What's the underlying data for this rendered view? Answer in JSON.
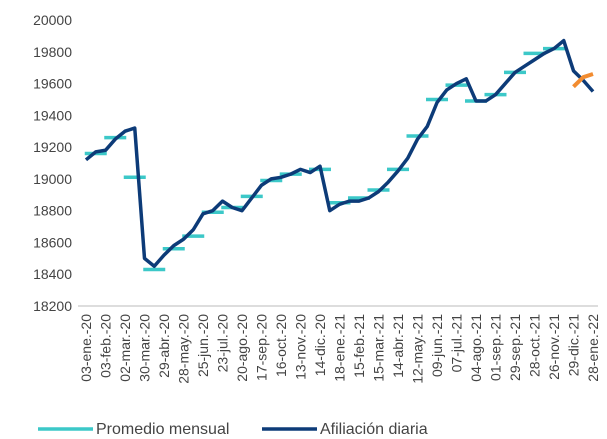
{
  "chart_data": {
    "type": "line",
    "x": [
      "03-ene.-20",
      null,
      "03-feb.-20",
      null,
      "02-mar.-20",
      null,
      "30-mar.-20",
      null,
      "29-abr.-20",
      null,
      "28-may.-20",
      null,
      "25-jun.-20",
      null,
      "23-jul.-20",
      null,
      "20-ago.-20",
      null,
      "17-sep.-20",
      null,
      "16-oct.-20",
      null,
      "13-nov.-20",
      null,
      "14-dic.-20",
      null,
      "18-ene.-21",
      null,
      "15-feb.-21",
      null,
      "15-mar.-21",
      null,
      "14-abr.-21",
      null,
      "12-may.-21",
      null,
      "09-jun.-21",
      null,
      "07-jul.-21",
      null,
      "04-ago.-21",
      null,
      "01-sep.-21",
      null,
      "29-sep.-21",
      null,
      "28-oct.-21",
      null,
      "26-nov.-21",
      null,
      "29-dic.-21",
      null,
      "28-ene.-22"
    ],
    "series": [
      {
        "name": "Promedio mensual",
        "color": "#3cc8c8",
        "values": [
          null,
          19160,
          null,
          19260,
          null,
          19010,
          null,
          18430,
          null,
          18560,
          null,
          18640,
          null,
          18790,
          null,
          18820,
          null,
          18890,
          null,
          18990,
          null,
          19030,
          null,
          null,
          19060,
          null,
          18850,
          null,
          18880,
          null,
          18930,
          null,
          19060,
          null,
          19270,
          null,
          19500,
          null,
          19590,
          null,
          19490,
          null,
          19530,
          null,
          19670,
          null,
          19790,
          null,
          19820,
          null,
          null,
          null,
          null
        ]
      },
      {
        "name": "Afiliación diaria",
        "color": "#0d3b78",
        "values": [
          19120,
          19170,
          19180,
          19250,
          19300,
          19320,
          18500,
          18450,
          18520,
          18580,
          18620,
          18680,
          18780,
          18800,
          18860,
          18820,
          18800,
          18880,
          18960,
          19000,
          19010,
          19030,
          19060,
          19040,
          19080,
          18800,
          18840,
          18860,
          18860,
          18880,
          18920,
          18980,
          19050,
          19130,
          19250,
          19330,
          19480,
          19560,
          19600,
          19630,
          19490,
          19490,
          19530,
          19600,
          19670,
          19710,
          19750,
          19790,
          19820,
          19870,
          19680,
          19620,
          19550
        ]
      }
    ],
    "highlight": {
      "color": "#f28c30",
      "values": [
        null,
        null,
        null,
        null,
        null,
        null,
        null,
        null,
        null,
        null,
        null,
        null,
        null,
        null,
        null,
        null,
        null,
        null,
        null,
        null,
        null,
        null,
        null,
        null,
        null,
        null,
        null,
        null,
        null,
        null,
        null,
        null,
        null,
        null,
        null,
        null,
        null,
        null,
        null,
        null,
        null,
        null,
        null,
        null,
        null,
        null,
        null,
        null,
        null,
        null,
        19580,
        19640,
        19660
      ]
    },
    "ylim": [
      18200,
      20000
    ],
    "yticks": [
      18200,
      18400,
      18600,
      18800,
      19000,
      19200,
      19400,
      19600,
      19800,
      20000
    ],
    "grid": false
  }
}
